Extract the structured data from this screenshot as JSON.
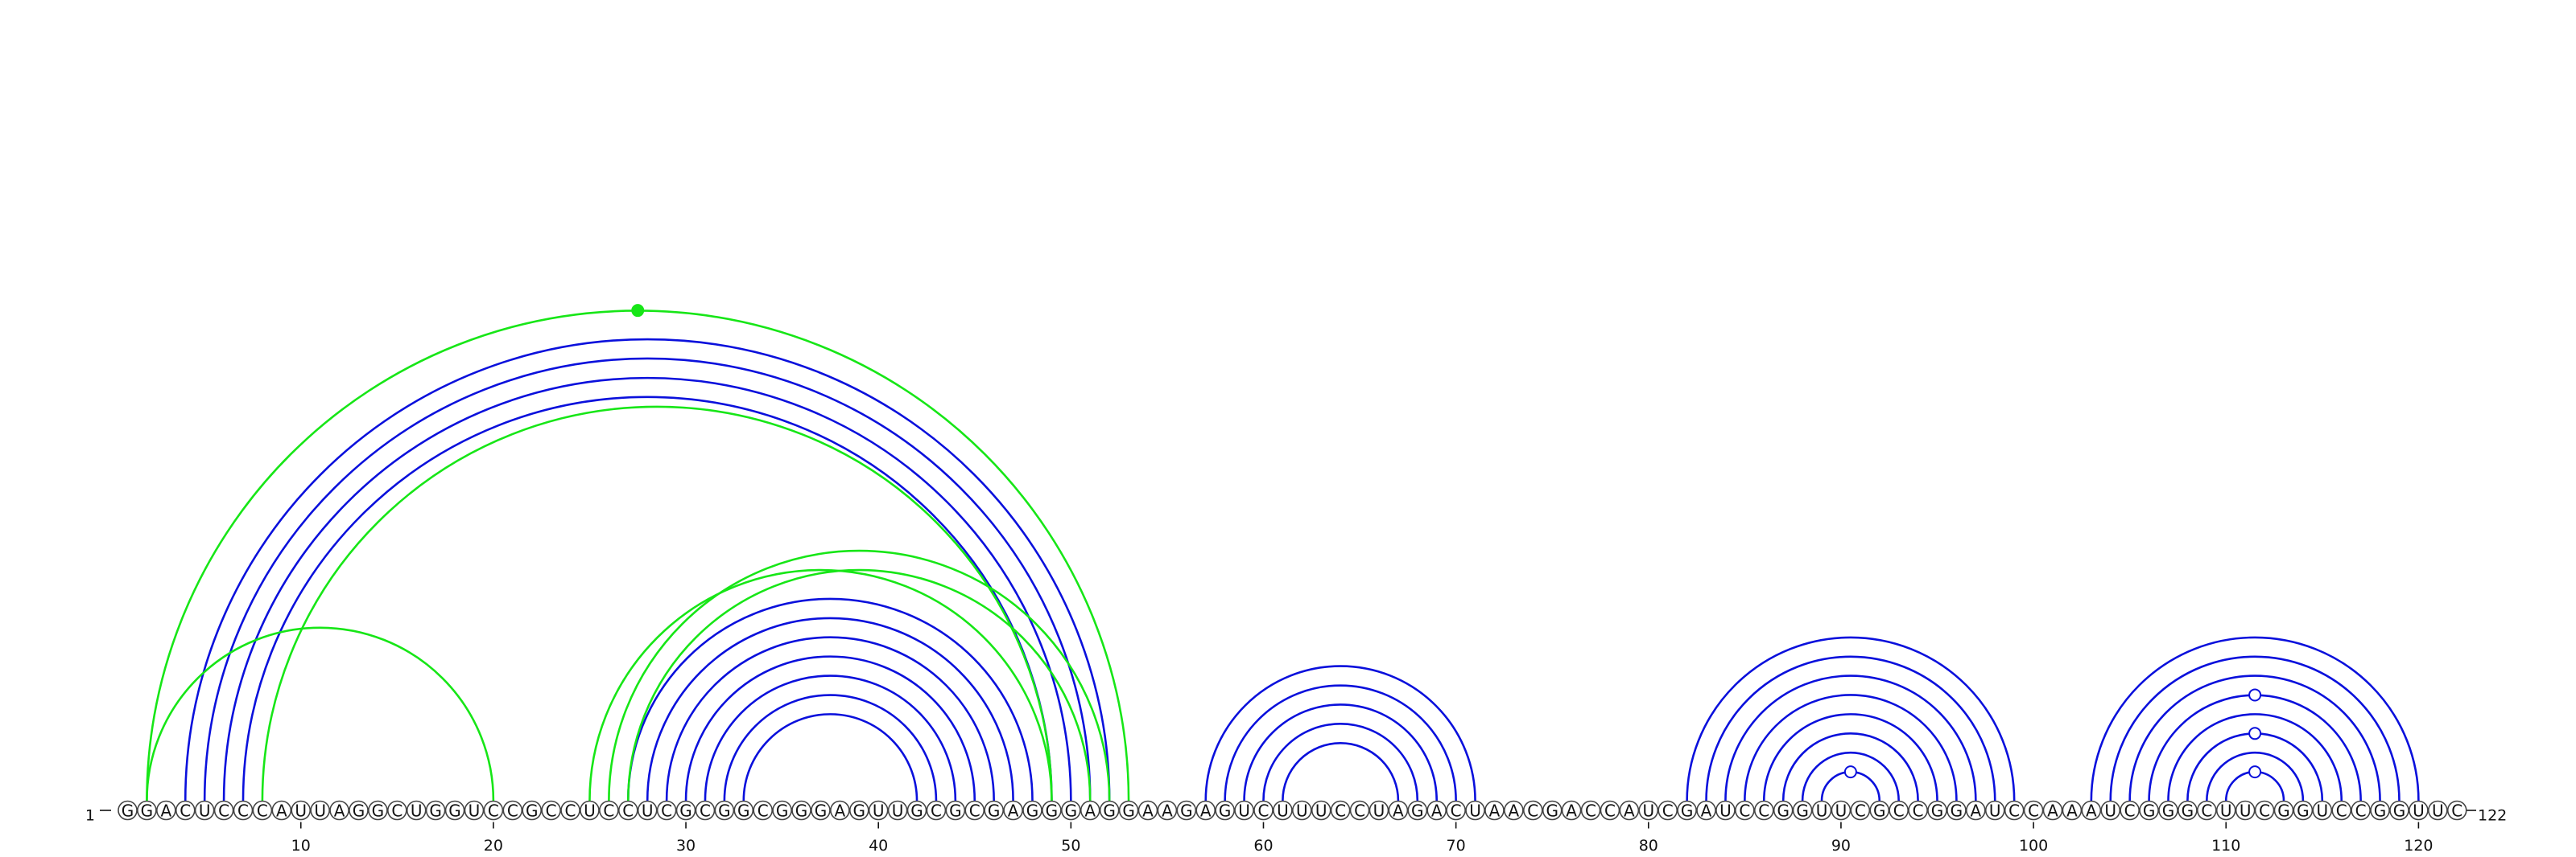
{
  "sequence": "GGACUCCCAUUAGGCUGGUCCGCCUCCUCGCGGCGGGAGUUGCGCGAGGGAGGAAGAGUCUUUCCUAGACUAACGACCAUCGAUCCGGUUCGCCGGAUCCAAAUCGGGCUUCGGUCCGGUUC",
  "start_label": "1",
  "end_label": "122",
  "ticks": [
    10,
    20,
    30,
    40,
    50,
    60,
    70,
    80,
    90,
    100,
    110,
    120
  ],
  "colors": {
    "blue": "#0a10dc",
    "green": "#17e617"
  },
  "pairs": [
    {
      "i": 4,
      "j": 52,
      "color": "blue"
    },
    {
      "i": 5,
      "j": 51,
      "color": "blue"
    },
    {
      "i": 6,
      "j": 50,
      "color": "blue"
    },
    {
      "i": 7,
      "j": 49,
      "color": "blue"
    },
    {
      "i": 27,
      "j": 48,
      "color": "blue"
    },
    {
      "i": 28,
      "j": 47,
      "color": "blue"
    },
    {
      "i": 29,
      "j": 46,
      "color": "blue"
    },
    {
      "i": 30,
      "j": 45,
      "color": "blue"
    },
    {
      "i": 31,
      "j": 44,
      "color": "blue"
    },
    {
      "i": 32,
      "j": 43,
      "color": "blue"
    },
    {
      "i": 33,
      "j": 42,
      "color": "blue"
    },
    {
      "i": 57,
      "j": 71,
      "color": "blue"
    },
    {
      "i": 58,
      "j": 70,
      "color": "blue"
    },
    {
      "i": 59,
      "j": 69,
      "color": "blue"
    },
    {
      "i": 60,
      "j": 68,
      "color": "blue"
    },
    {
      "i": 61,
      "j": 67,
      "color": "blue"
    },
    {
      "i": 82,
      "j": 99,
      "color": "blue"
    },
    {
      "i": 83,
      "j": 98,
      "color": "blue"
    },
    {
      "i": 84,
      "j": 97,
      "color": "blue"
    },
    {
      "i": 85,
      "j": 96,
      "color": "blue"
    },
    {
      "i": 86,
      "j": 95,
      "color": "blue"
    },
    {
      "i": 87,
      "j": 94,
      "color": "blue"
    },
    {
      "i": 88,
      "j": 93,
      "color": "blue"
    },
    {
      "i": 89,
      "j": 92,
      "color": "blue"
    },
    {
      "i": 103,
      "j": 120,
      "color": "blue"
    },
    {
      "i": 104,
      "j": 119,
      "color": "blue"
    },
    {
      "i": 105,
      "j": 118,
      "color": "blue"
    },
    {
      "i": 106,
      "j": 117,
      "color": "blue"
    },
    {
      "i": 107,
      "j": 116,
      "color": "blue"
    },
    {
      "i": 108,
      "j": 115,
      "color": "blue"
    },
    {
      "i": 109,
      "j": 114,
      "color": "blue"
    },
    {
      "i": 110,
      "j": 113,
      "color": "blue"
    },
    {
      "i": 2,
      "j": 53,
      "color": "green"
    },
    {
      "i": 8,
      "j": 49,
      "color": "green"
    },
    {
      "i": 2,
      "j": 20,
      "color": "green"
    },
    {
      "i": 25,
      "j": 49,
      "color": "green"
    },
    {
      "i": 26,
      "j": 52,
      "color": "green"
    },
    {
      "i": 27,
      "j": 51,
      "color": "green"
    }
  ],
  "markers": [
    {
      "i": 2,
      "j": 53,
      "fill": "green"
    },
    {
      "i": 89,
      "j": 92,
      "fill": "none"
    },
    {
      "i": 110,
      "j": 113,
      "fill": "none"
    },
    {
      "i": 108,
      "j": 115,
      "fill": "none"
    },
    {
      "i": 106,
      "j": 117,
      "fill": "none"
    }
  ]
}
